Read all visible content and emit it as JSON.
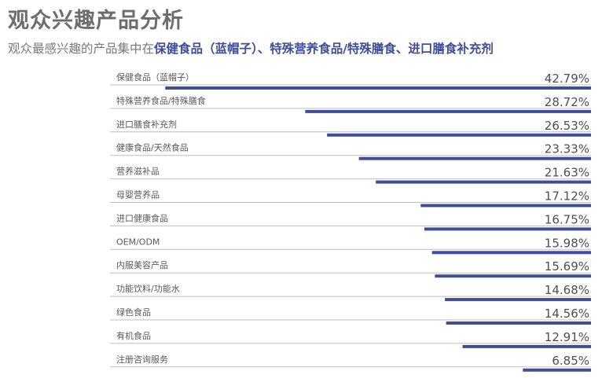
{
  "title": "观众兴趣产品分析",
  "subtitle": {
    "prefix": "观众最感兴趣的产品集中在",
    "highlight": "保健食品（蓝帽子）、特殊营养食品/特殊膳食、进口膳食补充剂"
  },
  "colors": {
    "bar": "#3f4e99",
    "grid": "#bfbfbf",
    "title": "#6d6d6d"
  },
  "chart_data": {
    "type": "bar",
    "orientation": "horizontal",
    "categories": [
      "保健食品（蓝帽子）",
      "特殊营养食品/特殊膳食",
      "进口膳食补充剂",
      "健康食品/天然食品",
      "营养滋补品",
      "母婴营养品",
      "进口健康食品",
      "OEM/ODM",
      "内服美容产品",
      "功能饮料/功能水",
      "绿色食品",
      "有机食品",
      "注册咨询服务"
    ],
    "values": [
      42.79,
      28.72,
      26.53,
      23.33,
      21.63,
      17.12,
      16.75,
      15.98,
      15.69,
      14.68,
      14.56,
      12.91,
      6.85
    ],
    "value_labels": [
      "42.79%",
      "28.72%",
      "26.53%",
      "23.33%",
      "21.63%",
      "17.12%",
      "16.75%",
      "15.98%",
      "15.69%",
      "14.68%",
      "14.56%",
      "12.91%",
      "6.85%"
    ],
    "unit": "%",
    "bars_anchor": "right",
    "grid": true
  }
}
